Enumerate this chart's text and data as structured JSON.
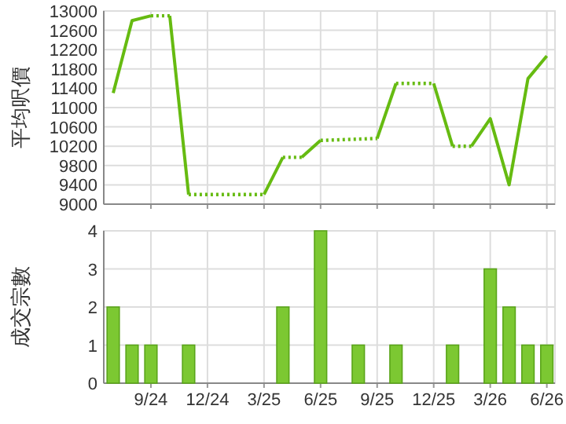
{
  "chart_data": [
    {
      "type": "line",
      "ylabel": "平均呎價",
      "xlim": [
        "2024-06-16",
        "2026-06-14"
      ],
      "ylim": [
        9000,
        13000
      ],
      "yticks": [
        9000,
        9400,
        9800,
        10200,
        10600,
        11000,
        11400,
        11800,
        12200,
        12600,
        13000
      ],
      "xticks": [
        {
          "value": "2024-09",
          "label": null
        },
        {
          "value": "2024-12",
          "label": null
        },
        {
          "value": "2025-03",
          "label": null
        },
        {
          "value": "2025-06",
          "label": null
        },
        {
          "value": "2025-09",
          "label": null
        },
        {
          "value": "2025-12",
          "label": null
        },
        {
          "value": "2026-03",
          "label": null
        },
        {
          "value": "2026-06",
          "label": null
        }
      ],
      "grid": true,
      "tick_labels": "y",
      "series": [
        {
          "color": "#66bb11",
          "line_style": "solid",
          "x": [
            "2024-07",
            "2024-08",
            "2024-09"
          ],
          "values": [
            11300,
            12800,
            12900
          ]
        },
        {
          "color": "#66bb11",
          "line_style": "dotted",
          "x": [
            "2024-09",
            "2024-10"
          ],
          "values": [
            12900,
            12900
          ]
        },
        {
          "color": "#66bb11",
          "line_style": "solid",
          "x": [
            "2024-10",
            "2024-11"
          ],
          "values": [
            12900,
            9200
          ]
        },
        {
          "color": "#66bb11",
          "line_style": "dotted",
          "x": [
            "2024-11",
            "2024-12",
            "2025-01",
            "2025-02",
            "2025-03"
          ],
          "values": [
            9200,
            9200,
            9200,
            9200,
            9200
          ]
        },
        {
          "color": "#66bb11",
          "line_style": "solid",
          "x": [
            "2025-03",
            "2025-04"
          ],
          "values": [
            9200,
            9970
          ]
        },
        {
          "color": "#66bb11",
          "line_style": "dotted",
          "x": [
            "2025-04",
            "2025-05"
          ],
          "values": [
            9970,
            9970
          ]
        },
        {
          "color": "#66bb11",
          "line_style": "solid",
          "x": [
            "2025-05",
            "2025-06"
          ],
          "values": [
            9970,
            10320
          ]
        },
        {
          "color": "#66bb11",
          "line_style": "dotted",
          "x": [
            "2025-06",
            "2025-09"
          ],
          "values": [
            10320,
            10360
          ]
        },
        {
          "color": "#66bb11",
          "line_style": "solid",
          "x": [
            "2025-09",
            "2025-10"
          ],
          "values": [
            10360,
            11500
          ]
        },
        {
          "color": "#66bb11",
          "line_style": "dotted",
          "x": [
            "2025-10",
            "2025-12"
          ],
          "values": [
            11500,
            11500
          ]
        },
        {
          "color": "#66bb11",
          "line_style": "solid",
          "x": [
            "2025-12",
            "2026-01"
          ],
          "values": [
            11500,
            10200
          ]
        },
        {
          "color": "#66bb11",
          "line_style": "dotted",
          "x": [
            "2026-01",
            "2026-02"
          ],
          "values": [
            10200,
            10200
          ]
        },
        {
          "color": "#66bb11",
          "line_style": "solid",
          "x": [
            "2026-02",
            "2026-03",
            "2026-04",
            "2026-05",
            "2026-06"
          ],
          "values": [
            10200,
            10770,
            9400,
            11600,
            12070
          ]
        }
      ]
    },
    {
      "type": "bar",
      "ylabel": "成交宗數",
      "xlim": [
        "2024-06-16",
        "2026-06-14"
      ],
      "ylim": [
        0,
        4
      ],
      "yticks": [
        0,
        1,
        2,
        3,
        4
      ],
      "xticks": [
        {
          "value": "2024-09",
          "label": "9/24"
        },
        {
          "value": "2024-12",
          "label": "12/24"
        },
        {
          "value": "2025-03",
          "label": "3/25"
        },
        {
          "value": "2025-06",
          "label": "6/25"
        },
        {
          "value": "2025-09",
          "label": "9/25"
        },
        {
          "value": "2025-12",
          "label": "12/25"
        },
        {
          "value": "2026-03",
          "label": "3/26"
        },
        {
          "value": "2026-06",
          "label": "6/26"
        }
      ],
      "grid": true,
      "color": "#7cc832",
      "x": [
        "2024-07",
        "2024-08",
        "2024-09",
        "2024-11",
        "2025-04",
        "2025-06",
        "2025-08",
        "2025-10",
        "2026-01",
        "2026-03",
        "2026-04",
        "2026-05",
        "2026-06"
      ],
      "values": [
        2,
        1,
        1,
        1,
        2,
        4,
        1,
        1,
        1,
        3,
        2,
        1,
        1
      ]
    }
  ]
}
